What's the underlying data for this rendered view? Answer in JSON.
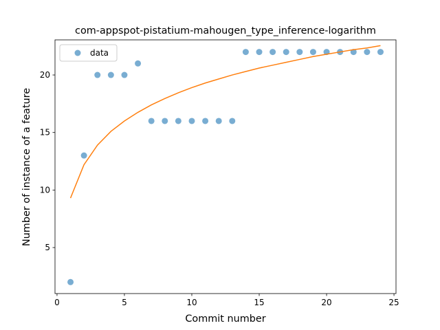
{
  "chart_data": {
    "type": "scatter",
    "title": "com-appspot-pistatium-mahougen_type_inference-logarithm",
    "xlabel": "Commit number",
    "ylabel": "Number of instance of a feature",
    "xlim": [
      -0.15,
      25.15
    ],
    "ylim": [
      1.0,
      23.05
    ],
    "xticks": [
      0,
      5,
      10,
      15,
      20,
      25
    ],
    "yticks": [
      5,
      10,
      15,
      20
    ],
    "grid": false,
    "legend_position": "top-left",
    "series": [
      {
        "name": "data",
        "kind": "scatter",
        "color": "#1f77b4",
        "x": [
          1,
          2,
          3,
          4,
          5,
          6,
          7,
          8,
          9,
          10,
          11,
          12,
          13,
          14,
          15,
          16,
          17,
          18,
          19,
          20,
          21,
          22,
          23,
          24
        ],
        "y": [
          2,
          13,
          20,
          20,
          20,
          21,
          16,
          16,
          16,
          16,
          16,
          16,
          16,
          22,
          22,
          22,
          22,
          22,
          22,
          22,
          22,
          22,
          22,
          22
        ]
      },
      {
        "kind": "line",
        "color": "#ff7f0e",
        "x": [
          1,
          2,
          3,
          4,
          5,
          6,
          7,
          8,
          9,
          10,
          11,
          12,
          13,
          14,
          15,
          16,
          17,
          18,
          19,
          20,
          21,
          22,
          23,
          24
        ],
        "y": [
          9.3,
          12.2,
          13.9,
          15.1,
          16.0,
          16.75,
          17.4,
          17.95,
          18.45,
          18.9,
          19.3,
          19.65,
          20.0,
          20.3,
          20.6,
          20.85,
          21.1,
          21.35,
          21.6,
          21.8,
          22.0,
          22.2,
          22.35,
          22.55
        ]
      }
    ]
  }
}
